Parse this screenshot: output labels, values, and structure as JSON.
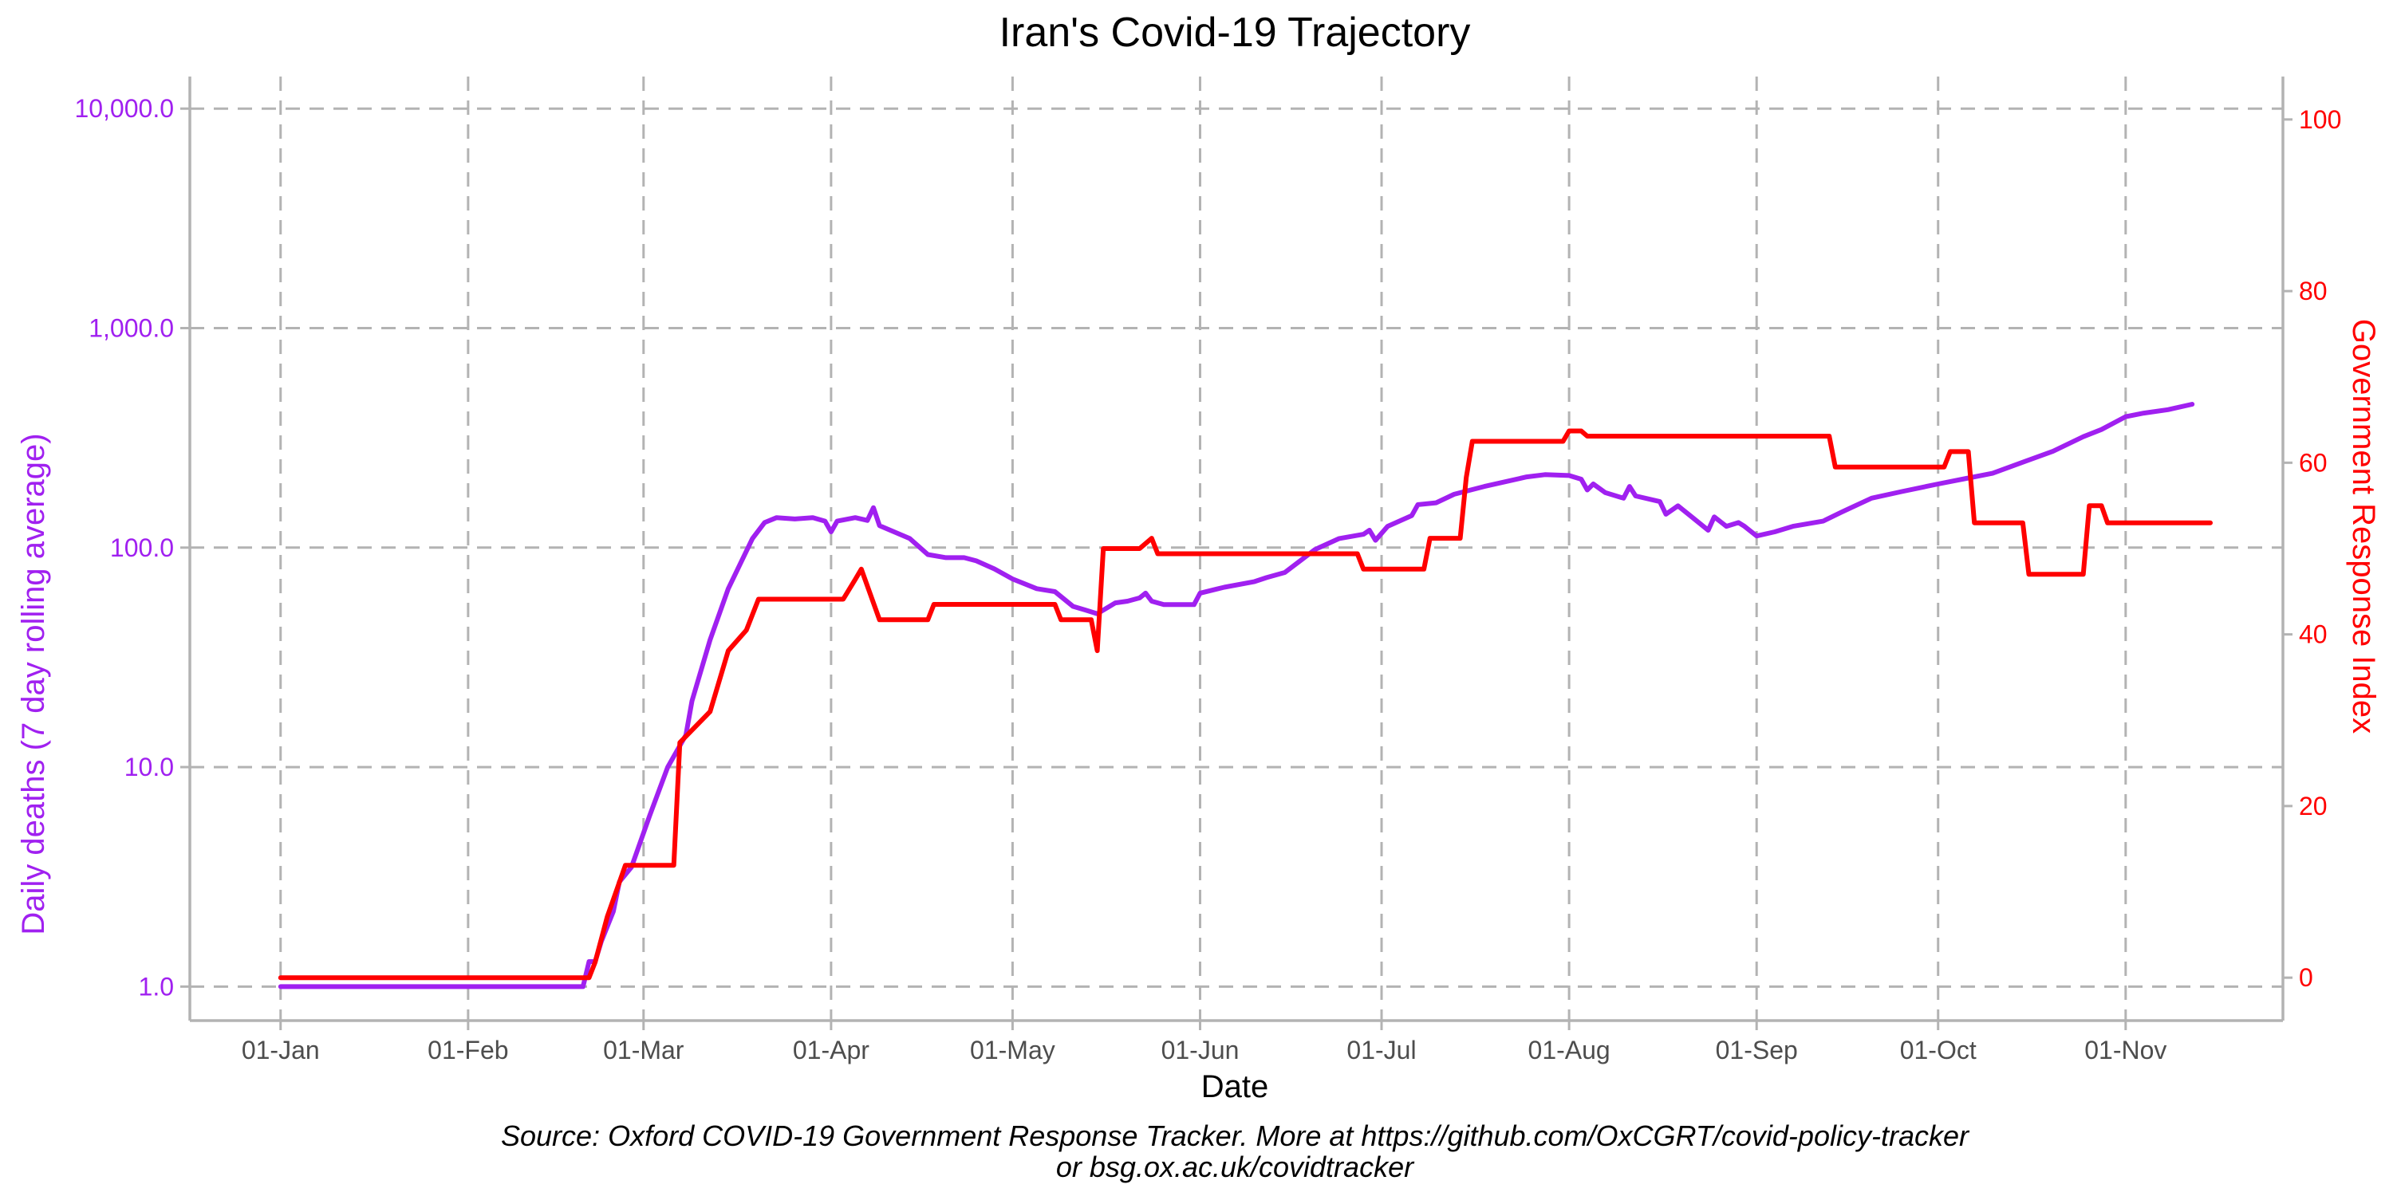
{
  "chart_data": {
    "type": "line",
    "title": "Iran's Covid-19 Trajectory",
    "xlabel": "Date",
    "ylabel_left": "Daily deaths (7 day rolling average)",
    "ylabel_right": "Government Response Index",
    "caption_lines": [
      "Source: Oxford COVID-19 Government Response Tracker. More at https://github.com/OxCGRT/covid-policy-tracker",
      "or bsg.ox.ac.uk/covidtracker"
    ],
    "x_ticks": [
      "01-Jan",
      "01-Feb",
      "01-Mar",
      "01-Apr",
      "01-May",
      "01-Jun",
      "01-Jul",
      "01-Aug",
      "01-Sep",
      "01-Oct",
      "01-Nov"
    ],
    "x_range": [
      "2019-12-17",
      "2020-11-27"
    ],
    "y_left_scale": "log10",
    "y_left_range": [
      0.7,
      14000
    ],
    "y_left_ticks": [
      {
        "v": 1,
        "label": "1.0"
      },
      {
        "v": 10,
        "label": "10.0"
      },
      {
        "v": 100,
        "label": "100.0"
      },
      {
        "v": 1000,
        "label": "1,000.0"
      },
      {
        "v": 10000,
        "label": "10,000.0"
      }
    ],
    "y_right_range": [
      -5,
      105
    ],
    "y_right_ticks": [
      0,
      20,
      40,
      60,
      80,
      100
    ],
    "grid": true,
    "colors": {
      "deaths": "#a020f0",
      "response": "#ff0000",
      "grid": "#b3b3b3"
    },
    "series": [
      {
        "key": "deaths",
        "axis": "left",
        "points": [
          [
            "2020-01-01",
            1
          ],
          [
            "2020-02-15",
            1
          ],
          [
            "2020-02-20",
            1
          ],
          [
            "2020-02-21",
            1.3
          ],
          [
            "2020-02-22",
            1.3
          ],
          [
            "2020-02-23",
            1.6
          ],
          [
            "2020-02-25",
            2.2
          ],
          [
            "2020-02-26",
            3
          ],
          [
            "2020-02-28",
            3.5
          ],
          [
            "2020-03-02",
            6
          ],
          [
            "2020-03-05",
            10
          ],
          [
            "2020-03-08",
            14
          ],
          [
            "2020-03-09",
            20
          ],
          [
            "2020-03-12",
            38
          ],
          [
            "2020-03-15",
            65
          ],
          [
            "2020-03-19",
            110
          ],
          [
            "2020-03-21",
            130
          ],
          [
            "2020-03-23",
            137
          ],
          [
            "2020-03-26",
            135
          ],
          [
            "2020-03-29",
            137
          ],
          [
            "2020-03-31",
            132
          ],
          [
            "2020-04-01",
            118
          ],
          [
            "2020-04-02",
            132
          ],
          [
            "2020-04-05",
            137
          ],
          [
            "2020-04-07",
            133
          ],
          [
            "2020-04-08",
            152
          ],
          [
            "2020-04-09",
            126
          ],
          [
            "2020-04-14",
            110
          ],
          [
            "2020-04-17",
            93
          ],
          [
            "2020-04-20",
            90
          ],
          [
            "2020-04-23",
            90
          ],
          [
            "2020-04-25",
            87
          ],
          [
            "2020-04-28",
            80
          ],
          [
            "2020-05-01",
            72
          ],
          [
            "2020-05-05",
            65
          ],
          [
            "2020-05-08",
            63
          ],
          [
            "2020-05-11",
            54
          ],
          [
            "2020-05-13",
            52
          ],
          [
            "2020-05-15",
            50
          ],
          [
            "2020-05-18",
            56
          ],
          [
            "2020-05-20",
            57
          ],
          [
            "2020-05-22",
            59
          ],
          [
            "2020-05-23",
            62
          ],
          [
            "2020-05-24",
            57
          ],
          [
            "2020-05-26",
            55
          ],
          [
            "2020-05-31",
            55
          ],
          [
            "2020-06-01",
            62
          ],
          [
            "2020-06-05",
            66
          ],
          [
            "2020-06-10",
            70
          ],
          [
            "2020-06-12",
            73
          ],
          [
            "2020-06-15",
            77
          ],
          [
            "2020-06-20",
            98
          ],
          [
            "2020-06-24",
            110
          ],
          [
            "2020-06-28",
            115
          ],
          [
            "2020-06-29",
            120
          ],
          [
            "2020-06-30",
            108
          ],
          [
            "2020-07-02",
            125
          ],
          [
            "2020-07-06",
            140
          ],
          [
            "2020-07-07",
            157
          ],
          [
            "2020-07-10",
            160
          ],
          [
            "2020-07-13",
            175
          ],
          [
            "2020-07-18",
            190
          ],
          [
            "2020-07-25",
            210
          ],
          [
            "2020-07-28",
            215
          ],
          [
            "2020-08-01",
            213
          ],
          [
            "2020-08-03",
            205
          ],
          [
            "2020-08-04",
            183
          ],
          [
            "2020-08-05",
            195
          ],
          [
            "2020-08-07",
            178
          ],
          [
            "2020-08-10",
            168
          ],
          [
            "2020-08-11",
            190
          ],
          [
            "2020-08-12",
            172
          ],
          [
            "2020-08-16",
            162
          ],
          [
            "2020-08-17",
            142
          ],
          [
            "2020-08-19",
            155
          ],
          [
            "2020-08-21",
            140
          ],
          [
            "2020-08-24",
            120
          ],
          [
            "2020-08-25",
            138
          ],
          [
            "2020-08-27",
            125
          ],
          [
            "2020-08-29",
            130
          ],
          [
            "2020-08-30",
            125
          ],
          [
            "2020-09-01",
            113
          ],
          [
            "2020-09-04",
            118
          ],
          [
            "2020-09-07",
            125
          ],
          [
            "2020-09-12",
            132
          ],
          [
            "2020-09-15",
            145
          ],
          [
            "2020-09-20",
            168
          ],
          [
            "2020-09-25",
            180
          ],
          [
            "2020-10-01",
            195
          ],
          [
            "2020-10-05",
            205
          ],
          [
            "2020-10-10",
            218
          ],
          [
            "2020-10-15",
            245
          ],
          [
            "2020-10-20",
            275
          ],
          [
            "2020-10-25",
            320
          ],
          [
            "2020-10-28",
            345
          ],
          [
            "2020-11-01",
            395
          ],
          [
            "2020-11-04",
            410
          ],
          [
            "2020-11-08",
            425
          ],
          [
            "2020-11-12",
            450
          ]
        ]
      },
      {
        "key": "response",
        "axis": "right",
        "points": [
          [
            "2020-01-01",
            0
          ],
          [
            "2020-02-19",
            0
          ],
          [
            "2020-02-21",
            0
          ],
          [
            "2020-02-22",
            1.8
          ],
          [
            "2020-02-24",
            7.1
          ],
          [
            "2020-02-27",
            13.1
          ],
          [
            "2020-03-06",
            13.1
          ],
          [
            "2020-03-07",
            27.4
          ],
          [
            "2020-03-12",
            31.0
          ],
          [
            "2020-03-15",
            38.1
          ],
          [
            "2020-03-18",
            40.5
          ],
          [
            "2020-03-20",
            44.1
          ],
          [
            "2020-04-03",
            44.1
          ],
          [
            "2020-04-05",
            46.4
          ],
          [
            "2020-04-06",
            47.6
          ],
          [
            "2020-04-09",
            41.7
          ],
          [
            "2020-04-17",
            41.7
          ],
          [
            "2020-04-18",
            43.5
          ],
          [
            "2020-05-08",
            43.5
          ],
          [
            "2020-05-09",
            41.7
          ],
          [
            "2020-05-14",
            41.7
          ],
          [
            "2020-05-15",
            38.1
          ],
          [
            "2020-05-16",
            50.0
          ],
          [
            "2020-05-22",
            50.0
          ],
          [
            "2020-05-24",
            51.2
          ],
          [
            "2020-05-25",
            49.4
          ],
          [
            "2020-06-27",
            49.4
          ],
          [
            "2020-06-28",
            47.6
          ],
          [
            "2020-07-08",
            47.6
          ],
          [
            "2020-07-09",
            51.2
          ],
          [
            "2020-07-14",
            51.2
          ],
          [
            "2020-07-15",
            58.3
          ],
          [
            "2020-07-16",
            62.5
          ],
          [
            "2020-07-31",
            62.5
          ],
          [
            "2020-08-01",
            63.7
          ],
          [
            "2020-08-03",
            63.7
          ],
          [
            "2020-08-04",
            63.1
          ],
          [
            "2020-09-13",
            63.1
          ],
          [
            "2020-09-14",
            59.5
          ],
          [
            "2020-10-02",
            59.5
          ],
          [
            "2020-10-03",
            61.3
          ],
          [
            "2020-10-06",
            61.3
          ],
          [
            "2020-10-07",
            53.0
          ],
          [
            "2020-10-15",
            53.0
          ],
          [
            "2020-10-16",
            47.0
          ],
          [
            "2020-10-25",
            47.0
          ],
          [
            "2020-10-26",
            55.0
          ],
          [
            "2020-10-28",
            55.0
          ],
          [
            "2020-10-29",
            53.0
          ],
          [
            "2020-11-15",
            53.0
          ]
        ]
      }
    ]
  }
}
